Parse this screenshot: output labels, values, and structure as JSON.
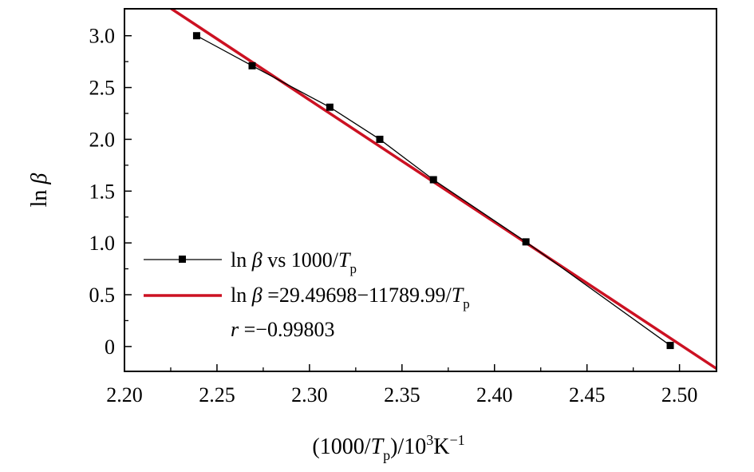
{
  "chart_data": {
    "type": "scatter",
    "xlabel": {
      "pre": "(1000/",
      "var": "T",
      "sub": "p",
      "mid": ")/10",
      "sup1": "3",
      "unit": "K",
      "sup2": "−1"
    },
    "ylabel": {
      "fn": "ln ",
      "sym": "β"
    },
    "xlim": [
      2.2,
      2.52
    ],
    "ylim": [
      -0.24,
      3.26
    ],
    "x_ticks": [
      2.2,
      2.25,
      2.3,
      2.35,
      2.4,
      2.45,
      2.5
    ],
    "x_tick_labels": [
      "2.20",
      "2.25",
      "2.30",
      "2.35",
      "2.40",
      "2.45",
      "2.50"
    ],
    "y_ticks": [
      0,
      0.5,
      1.0,
      1.5,
      2.0,
      2.5,
      3.0
    ],
    "y_tick_labels": [
      "0",
      "0.5",
      "1.0",
      "1.5",
      "2.0",
      "2.5",
      "3.0"
    ],
    "series": [
      {
        "kind": "data",
        "x": [
          2.239,
          2.269,
          2.311,
          2.338,
          2.367,
          2.417,
          2.495
        ],
        "y": [
          3.0,
          2.71,
          2.31,
          2.0,
          1.61,
          1.01,
          0.01
        ],
        "color": "#000000"
      },
      {
        "kind": "fit",
        "intercept": 29.49698,
        "slope": -11.78999,
        "color": "#cc1122"
      }
    ],
    "legend": {
      "entries": [
        {
          "fn": "ln ",
          "sym": "β",
          "rest": "  vs 1000/",
          "var": "T",
          "sub": "p"
        },
        {
          "fn": "ln ",
          "sym": "β",
          "rest": " =29.49698−11789.99/",
          "var": "T",
          "sub": "p"
        }
      ],
      "r_label": {
        "var": "r",
        "rest": " =−0.99803"
      },
      "placement": "bottom-left"
    }
  }
}
